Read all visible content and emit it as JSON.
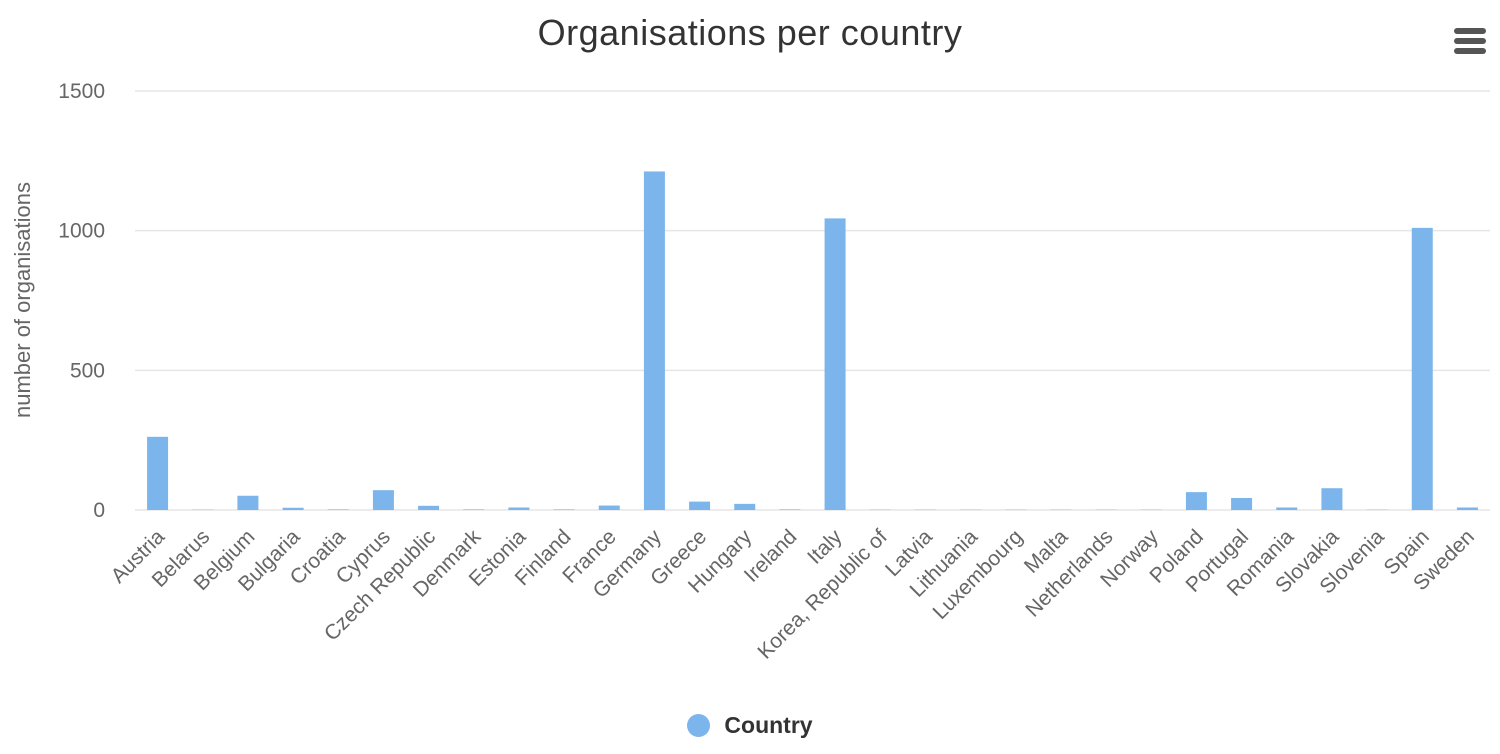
{
  "chart_data": {
    "type": "bar",
    "title": "Organisations per country",
    "xlabel": "",
    "ylabel": "number of organisations",
    "ylim": [
      0,
      1500
    ],
    "yticks": [
      0,
      500,
      1000,
      1500
    ],
    "grid": true,
    "legend_position": "bottom-center",
    "categories": [
      "Austria",
      "Belarus",
      "Belgium",
      "Bulgaria",
      "Croatia",
      "Cyprus",
      "Czech Republic",
      "Denmark",
      "Estonia",
      "Finland",
      "France",
      "Germany",
      "Greece",
      "Hungary",
      "Ireland",
      "Italy",
      "Korea, Republic of",
      "Latvia",
      "Lithuania",
      "Luxembourg",
      "Malta",
      "Netherlands",
      "Norway",
      "Poland",
      "Portugal",
      "Romania",
      "Slovakia",
      "Slovenia",
      "Spain",
      "Sweden"
    ],
    "series": [
      {
        "name": "Country",
        "color": "#7cb5ec",
        "values": [
          262,
          1,
          51,
          8,
          2,
          71,
          15,
          2,
          9,
          2,
          16,
          1212,
          30,
          22,
          2,
          1044,
          1,
          1,
          1,
          1,
          1,
          1,
          1,
          64,
          43,
          9,
          78,
          1,
          1010,
          9
        ]
      }
    ]
  },
  "menu": {
    "icon": "hamburger-menu-icon"
  }
}
